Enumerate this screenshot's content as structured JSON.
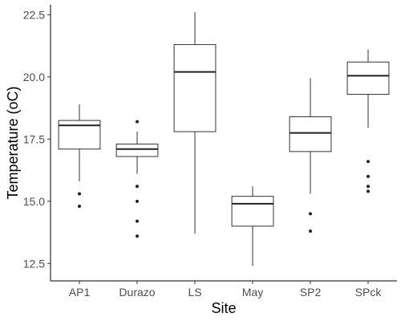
{
  "chart_data": {
    "type": "boxplot",
    "xlabel": "Site",
    "ylabel": "Temperature (oC)",
    "ylim": [
      11.8,
      22.9
    ],
    "yticks": [
      12.5,
      15.0,
      17.5,
      20.0,
      22.5
    ],
    "ytick_labels": [
      "12.5",
      "15.0",
      "17.5",
      "20.0",
      "22.5"
    ],
    "grid": false,
    "categories": [
      "AP1",
      "Durazo",
      "LS",
      "May",
      "SP2",
      "SPck"
    ],
    "boxes": [
      {
        "name": "AP1",
        "whisker_low": 15.8,
        "q1": 17.1,
        "median": 18.05,
        "q3": 18.25,
        "whisker_high": 18.9,
        "outliers": [
          15.3,
          14.8
        ]
      },
      {
        "name": "Durazo",
        "whisker_low": 16.1,
        "q1": 16.8,
        "median": 17.1,
        "q3": 17.3,
        "whisker_high": 17.8,
        "outliers": [
          18.2,
          15.6,
          15.0,
          14.2,
          13.6
        ]
      },
      {
        "name": "LS",
        "whisker_low": 13.7,
        "q1": 17.8,
        "median": 20.2,
        "q3": 21.3,
        "whisker_high": 22.6,
        "outliers": []
      },
      {
        "name": "May",
        "whisker_low": 12.4,
        "q1": 14.0,
        "median": 14.9,
        "q3": 15.2,
        "whisker_high": 15.6,
        "outliers": []
      },
      {
        "name": "SP2",
        "whisker_low": 15.3,
        "q1": 17.0,
        "median": 17.75,
        "q3": 18.4,
        "whisker_high": 19.95,
        "outliers": [
          14.5,
          13.8
        ]
      },
      {
        "name": "SPck",
        "whisker_low": 17.95,
        "q1": 19.3,
        "median": 20.05,
        "q3": 20.6,
        "whisker_high": 21.1,
        "outliers": [
          16.6,
          16.0,
          15.6,
          15.4
        ]
      }
    ]
  }
}
